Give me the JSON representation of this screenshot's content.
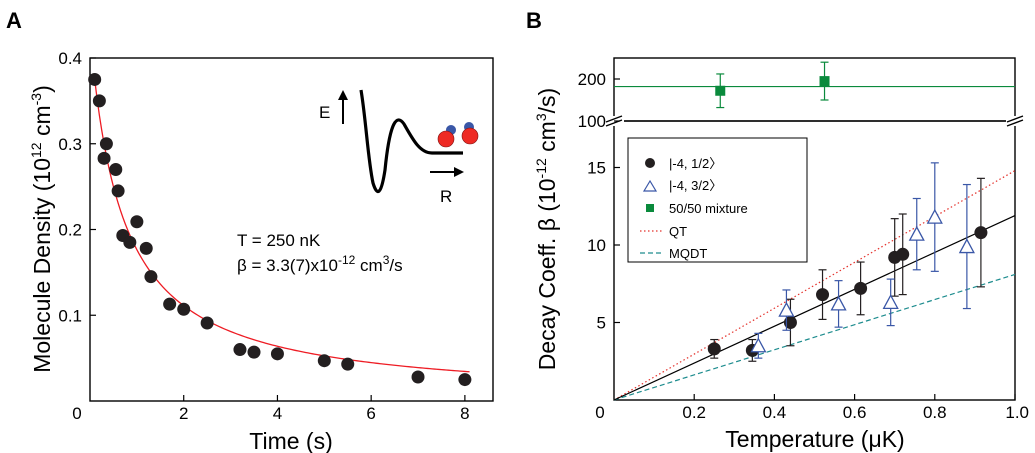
{
  "chart_data": [
    {
      "panel": "A",
      "type": "scatter",
      "xlabel": "Time (s)",
      "ylabel_main": "Molecule Density (10",
      "ylabel_exp1": "12",
      "ylabel_mid": " cm",
      "ylabel_exp2": "-3",
      "ylabel_end": ")",
      "xlim": [
        0,
        8.6
      ],
      "ylim": [
        0,
        0.4
      ],
      "x_ticks": [
        {
          "value": 2,
          "label": "2"
        },
        {
          "value": 4,
          "label": "4"
        },
        {
          "value": 6,
          "label": "6"
        },
        {
          "value": 8,
          "label": "8"
        }
      ],
      "x_origin_label": "0",
      "y_ticks": [
        {
          "value": 0.1,
          "label": "0.1"
        },
        {
          "value": 0.2,
          "label": "0.2"
        },
        {
          "value": 0.3,
          "label": "0.3"
        },
        {
          "value": 0.4,
          "label": "0.4"
        }
      ],
      "series": [
        {
          "marker": "circle-filled",
          "color": "#231f20",
          "x": [
            0.1,
            0.2,
            0.3,
            0.35,
            0.55,
            0.6,
            0.7,
            0.85,
            1.0,
            1.2,
            1.3,
            1.7,
            2.0,
            2.5,
            3.2,
            3.5,
            4.0,
            5.0,
            5.5,
            7.0,
            8.0
          ],
          "y": [
            0.375,
            0.35,
            0.283,
            0.3,
            0.27,
            0.245,
            0.193,
            0.185,
            0.209,
            0.178,
            0.145,
            0.113,
            0.107,
            0.091,
            0.06,
            0.057,
            0.055,
            0.047,
            0.043,
            0.028,
            0.025
          ]
        }
      ],
      "fit": {
        "color": "#ee1c24",
        "amplitude": 0.375,
        "rate": 1.25,
        "x_start": 0.1,
        "x_end": 8.1
      },
      "annotation": {
        "t_line": "T = 250 nK",
        "beta_line_main": "β = 3.3(7)x10",
        "beta_line_exp": "-12",
        "beta_line_mid": " cm",
        "beta_line_exp2": "3",
        "beta_line_end": "/s"
      },
      "inset": {
        "e_label": "E",
        "r_label": "R",
        "atom_color": "#ee2a24",
        "atom2_color": "#3a57a7"
      }
    },
    {
      "panel": "B",
      "type": "scatter",
      "xlabel": "Temperature (μK)",
      "ylabel_main": "Decay Coeff. β (10",
      "ylabel_exp1": "-12",
      "ylabel_mid": " cm",
      "ylabel_exp2": "3",
      "ylabel_end": "/s)",
      "xlim": [
        0,
        1.0
      ],
      "ylim_lower": [
        0,
        18
      ],
      "ylim_upper": [
        100,
        250
      ],
      "x_ticks": [
        {
          "value": 0.2,
          "label": "0.2"
        },
        {
          "value": 0.4,
          "label": "0.4"
        },
        {
          "value": 0.6,
          "label": "0.6"
        },
        {
          "value": 0.8,
          "label": "0.8"
        },
        {
          "value": 1.0,
          "label": "1.0"
        }
      ],
      "x_origin_label": "0",
      "y_ticks_lower": [
        {
          "value": 5,
          "label": "5"
        },
        {
          "value": 10,
          "label": "10"
        },
        {
          "value": 15,
          "label": "15"
        }
      ],
      "y_ticks_upper": [
        {
          "value": 100,
          "label": "100"
        },
        {
          "value": 200,
          "label": "200"
        }
      ],
      "series": [
        {
          "name": "|-4, 1/2〉",
          "marker": "circle-filled",
          "color": "#231f20",
          "points": [
            {
              "x": 0.25,
              "y": 3.3,
              "err": 0.6
            },
            {
              "x": 0.345,
              "y": 3.2,
              "err": 0.7
            },
            {
              "x": 0.44,
              "y": 5.0,
              "err": 1.5
            },
            {
              "x": 0.52,
              "y": 6.8,
              "err": 1.6
            },
            {
              "x": 0.615,
              "y": 7.2,
              "err": 1.7
            },
            {
              "x": 0.7,
              "y": 9.2,
              "err": 2.5
            },
            {
              "x": 0.72,
              "y": 9.4,
              "err": 2.6
            },
            {
              "x": 0.915,
              "y": 10.8,
              "err": 3.5
            }
          ]
        },
        {
          "name": "|-4, 3/2〉",
          "marker": "triangle-open",
          "color": "#3a57a7",
          "points": [
            {
              "x": 0.36,
              "y": 3.5,
              "err": 0.8
            },
            {
              "x": 0.43,
              "y": 5.8,
              "err": 1.3
            },
            {
              "x": 0.56,
              "y": 6.2,
              "err": 1.5
            },
            {
              "x": 0.69,
              "y": 6.3,
              "err": 1.5
            },
            {
              "x": 0.755,
              "y": 10.7,
              "err": 2.3
            },
            {
              "x": 0.8,
              "y": 11.8,
              "err": 3.5
            },
            {
              "x": 0.88,
              "y": 9.9,
              "err": 4.0
            }
          ]
        },
        {
          "name": "50/50 mixture",
          "marker": "square-filled",
          "color": "#0a8a3c",
          "points": [
            {
              "x": 0.265,
              "y": 172,
              "err": 40
            },
            {
              "x": 0.525,
              "y": 195,
              "err": 45
            }
          ]
        }
      ],
      "lines": [
        {
          "name": "QT",
          "style": "dotted",
          "color": "#e4312b",
          "slope": 14.8
        },
        {
          "name": "MQDT",
          "style": "dashed",
          "color": "#1d8c8e",
          "slope": 8.1
        },
        {
          "style": "solid",
          "color": "#000000",
          "slope": 11.9
        },
        {
          "style": "solid",
          "color": "#0a8a3c",
          "constant": 182
        }
      ],
      "legend_location": "upper-left"
    }
  ]
}
